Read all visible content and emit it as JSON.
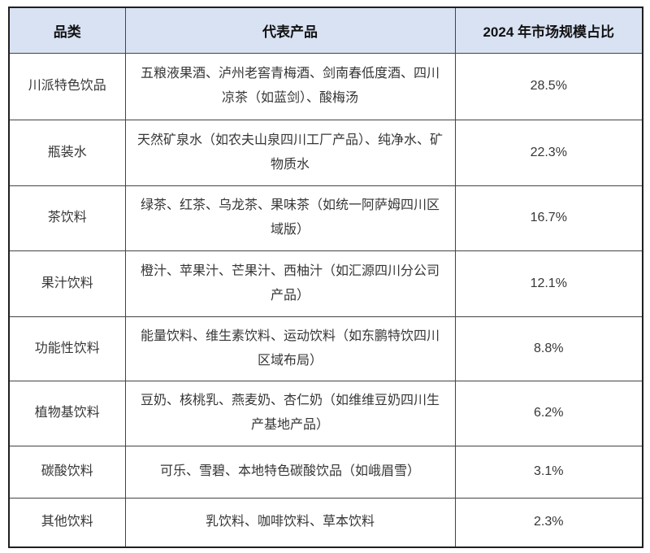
{
  "colors": {
    "header_bg": "#d9e2f3",
    "border_outer": "#1f1f1f",
    "border_inner": "#444444",
    "text_body": "#363636",
    "text_header": "#111111"
  },
  "table": {
    "headers": [
      "品类",
      "代表产品",
      "2024 年市场规模占比"
    ],
    "rows": [
      {
        "category": "川派特色饮品",
        "products": "五粮液果酒、泸州老窖青梅酒、剑南春低度酒、四川凉茶（如蓝剑）、酸梅汤",
        "share": "28.5%"
      },
      {
        "category": "瓶装水",
        "products": "天然矿泉水（如农夫山泉四川工厂产品）、纯净水、矿物质水",
        "share": "22.3%"
      },
      {
        "category": "茶饮料",
        "products": "绿茶、红茶、乌龙茶、果味茶（如统一阿萨姆四川区域版）",
        "share": "16.7%"
      },
      {
        "category": "果汁饮料",
        "products": "橙汁、苹果汁、芒果汁、西柚汁（如汇源四川分公司产品）",
        "share": "12.1%"
      },
      {
        "category": "功能性饮料",
        "products": "能量饮料、维生素饮料、运动饮料（如东鹏特饮四川区域布局）",
        "share": "8.8%"
      },
      {
        "category": "植物基饮料",
        "products": "豆奶、核桃乳、燕麦奶、杏仁奶（如维维豆奶四川生产基地产品）",
        "share": "6.2%"
      },
      {
        "category": "碳酸饮料",
        "products": "可乐、雪碧、本地特色碳酸饮品（如峨眉雪）",
        "share": "3.1%"
      },
      {
        "category": "其他饮料",
        "products": "乳饮料、咖啡饮料、草本饮料",
        "share": "2.3%"
      }
    ]
  }
}
